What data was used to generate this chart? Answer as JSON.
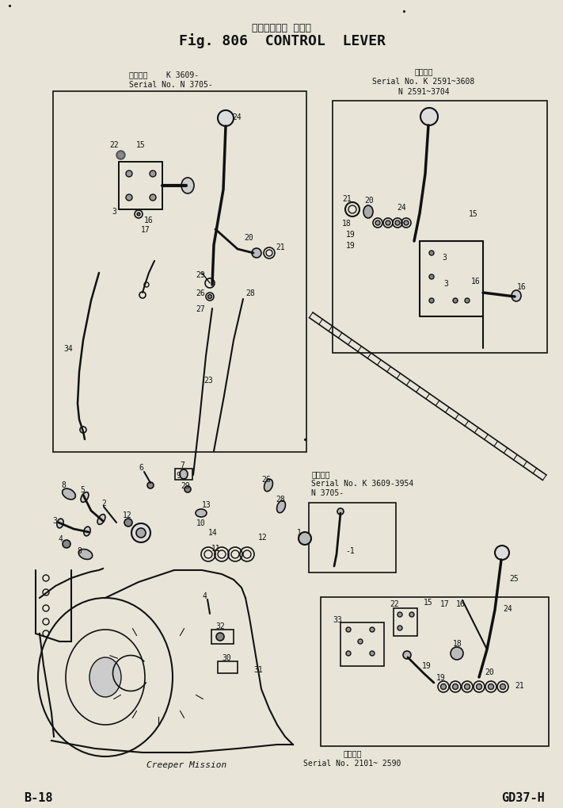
{
  "title_japanese": "コントロール レバー",
  "title_english": "Fig. 806  CONTROL  LEVER",
  "page_number": "B-18",
  "model": "GD37-H",
  "background_color": "#d8d4c8",
  "paper_color": "#e8e5d8",
  "border_color": "#111111",
  "text_color": "#111111",
  "top_left_label1": "通用分機    K 3609-",
  "top_left_label2": "Serial No. N 3705-",
  "top_right_label1": "通用分機",
  "top_right_label2": "Serial No. K 2591~3608",
  "top_right_label3": "N 2591~3704",
  "mid_right_label1": "通用分機",
  "mid_right_label2": "Serial No. K 3609-3954",
  "mid_right_label3": "N 3705-",
  "bottom_label1": "通用分機",
  "bottom_label2": "Serial No. 2101~ 2590",
  "creeper_label": "Creeper Mission",
  "fig_width": 711,
  "fig_height": 1020
}
